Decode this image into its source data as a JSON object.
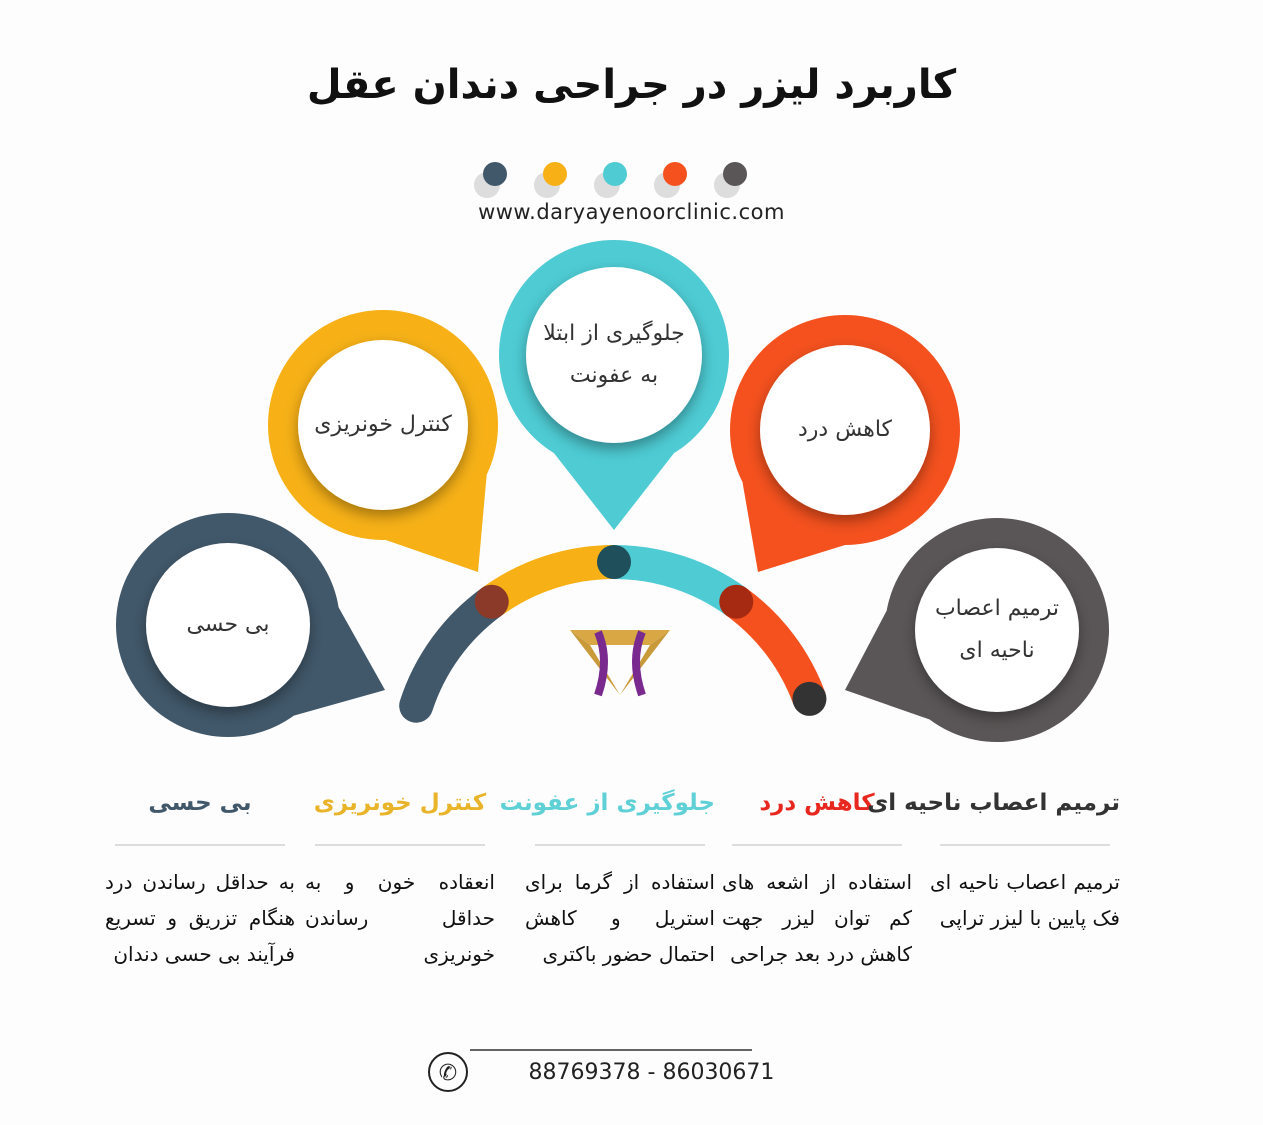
{
  "title": "کاربرد لیزر در جراحی دندان عقل",
  "website": "www.daryayenoorclinic.com",
  "colors": {
    "slate": "#41586a",
    "yellow": "#f7b117",
    "cyan": "#4ecbd3",
    "orange": "#f4511e",
    "gray": "#5a5657"
  },
  "bubbles": [
    {
      "label": "بی حسی",
      "color": "#41586a"
    },
    {
      "label": "کنترل خونریزی",
      "color": "#f7b117"
    },
    {
      "label": "جلوگیری از ابتلا\nبه عفونت",
      "color": "#4ecbd3"
    },
    {
      "label": "کاهش درد",
      "color": "#f4511e"
    },
    {
      "label": "ترمیم اعصاب\nناحیه ای",
      "color": "#5a5657"
    }
  ],
  "columns": [
    {
      "heading": "بی حسی",
      "color": "#41586a",
      "text": "به حداقل رساندن درد هنگام تزریق و تسریع فرآیند بی حسی دندان"
    },
    {
      "heading": "کنترل خونریزی",
      "color": "#e9b42a",
      "text": "انعقاده خون و به حداقل رساندن خونریزی"
    },
    {
      "heading": "جلوگیری از عفونت",
      "color": "#5fd0d6",
      "text": "استفاده از گرما برای استریل و کاهش احتمال حضور باکتری"
    },
    {
      "heading": "کاهش درد",
      "color": "#e8281e",
      "text": "استفاده از اشعه های کم توان لیزر جهت کاهش درد بعد جراحی"
    },
    {
      "heading": "ترمیم اعصاب ناحیه ای",
      "color": "#333333",
      "text": "ترمیم اعصاب ناحیه ای فک پایین با لیزر تراپی"
    }
  ],
  "phone": "88769378 - 86030671",
  "icons": {
    "phone": "phone-icon",
    "logo": "diamond-logo"
  }
}
